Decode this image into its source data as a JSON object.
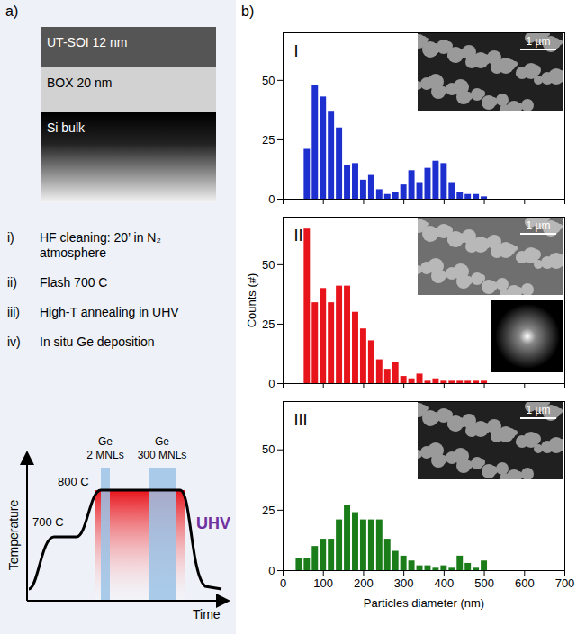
{
  "panel_a": {
    "label": "a)",
    "layers": [
      "UT-SOI 12 nm",
      "BOX 20 nm",
      "Si bulk"
    ],
    "steps": [
      {
        "numeral": "i)",
        "text": "HF cleaning: 20’ in N₂ atmosphere"
      },
      {
        "numeral": "ii)",
        "text": "Flash 700 C"
      },
      {
        "numeral": "iii)",
        "text": "High-T annealing in UHV"
      },
      {
        "numeral": "iv)",
        "text": "In situ Ge deposition"
      }
    ],
    "schematic": {
      "y_label": "Temperature",
      "x_label": "Time",
      "temperatures": [
        "700 C",
        "800 C"
      ],
      "depositions": [
        "Ge 2 MNLs",
        "Ge 300 MNLs"
      ],
      "environment": "UHV"
    }
  },
  "panel_b": {
    "label": "b)",
    "y_label": "Counts (#)",
    "inset_scale": "1 µm"
  },
  "chart_data": [
    {
      "type": "histogram",
      "title": "I",
      "color": "#1e2fd0",
      "bins": [
        50,
        70,
        90,
        110,
        130,
        150,
        170,
        190,
        210,
        230,
        250,
        270,
        290,
        310,
        330,
        350,
        370,
        390,
        410,
        430,
        450,
        470,
        490,
        510
      ],
      "values": [
        21,
        48,
        43,
        37,
        30,
        14,
        15,
        8,
        10,
        4,
        2,
        3,
        6,
        12,
        7,
        13,
        16,
        15,
        7,
        3,
        2,
        2,
        1
      ],
      "xlim": [
        0,
        700
      ],
      "xticks": [
        0,
        100,
        200,
        300,
        400,
        500,
        600,
        700
      ],
      "ylim": [
        0,
        70
      ],
      "yticks": [
        0,
        25,
        50
      ],
      "tick_labels": "y"
    },
    {
      "type": "histogram",
      "title": "II",
      "color": "#e8141b",
      "bins": [
        50,
        70,
        90,
        110,
        130,
        150,
        170,
        190,
        210,
        230,
        250,
        270,
        290,
        310,
        330,
        350,
        370,
        390,
        410,
        430,
        450,
        470,
        490,
        510
      ],
      "values": [
        65,
        34,
        40,
        34,
        41,
        41,
        30,
        23,
        18,
        10,
        6,
        9,
        3,
        2,
        4,
        1,
        2,
        1,
        1,
        1,
        1,
        1,
        1
      ],
      "xlim": [
        0,
        700
      ],
      "xticks": [
        0,
        100,
        200,
        300,
        400,
        500,
        600,
        700
      ],
      "ylim": [
        0,
        70
      ],
      "yticks": [
        0,
        25,
        50
      ],
      "tick_labels": "y"
    },
    {
      "type": "histogram",
      "title": "III",
      "color": "#1a7d1a",
      "bins": [
        30,
        50,
        70,
        90,
        110,
        130,
        150,
        170,
        190,
        210,
        230,
        250,
        270,
        290,
        310,
        330,
        350,
        370,
        390,
        410,
        430,
        450,
        470,
        490,
        510
      ],
      "values": [
        5,
        5,
        10,
        13,
        13,
        21,
        27,
        24,
        21,
        21,
        21,
        13,
        8,
        6,
        4,
        2,
        2,
        1,
        2,
        1,
        6,
        3,
        1,
        4
      ],
      "xlim": [
        0,
        700
      ],
      "xticks": [
        0,
        100,
        200,
        300,
        400,
        500,
        600,
        700
      ],
      "ylim": [
        0,
        70
      ],
      "yticks": [
        0,
        25,
        50
      ],
      "x_label": "Particles diameter (nm)"
    }
  ]
}
